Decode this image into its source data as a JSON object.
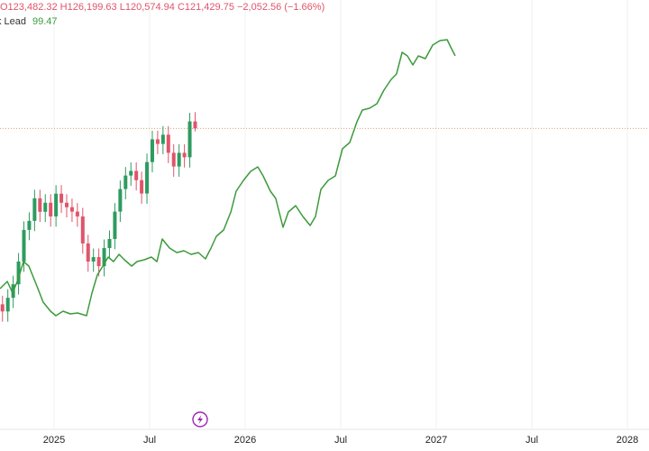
{
  "chart_data": {
    "type": "candlestick",
    "ohlc_text": "O123,482.32 H126,199.63 L120,574.94 C121,429.75 −2,052.56 (−1.66%)",
    "xlim": [
      2024.717,
      2028.113
    ],
    "xticks": [
      {
        "value": 2025,
        "label": "2025"
      },
      {
        "value": 2025.5,
        "label": "Jul"
      },
      {
        "value": 2026,
        "label": "2026"
      },
      {
        "value": 2026.5,
        "label": "Jul"
      },
      {
        "value": 2027,
        "label": "2027"
      },
      {
        "value": 2027.5,
        "label": "Jul"
      },
      {
        "value": 2028,
        "label": "2028"
      }
    ],
    "ylim": [
      35000,
      159000
    ],
    "y2lim": [
      30,
      110
    ],
    "grid": true,
    "up_color": "#2e9b5f",
    "down_color": "#e0546a",
    "price_line_color": "#e0a070",
    "candles": {
      "x": [
        2024.73,
        2024.758,
        2024.786,
        2024.814,
        2024.842,
        2024.87,
        2024.898,
        2024.926,
        2024.954,
        2024.982,
        2025.01,
        2025.038,
        2025.066,
        2025.094,
        2025.122,
        2025.15,
        2025.178,
        2025.206,
        2025.234,
        2025.262,
        2025.29,
        2025.318,
        2025.346,
        2025.374,
        2025.402,
        2025.43,
        2025.458,
        2025.486,
        2025.514,
        2025.542,
        2025.57,
        2025.598,
        2025.626,
        2025.654,
        2025.682,
        2025.71,
        2025.738
      ],
      "open": [
        70000,
        67900,
        71900,
        75850,
        82500,
        91750,
        94400,
        101000,
        97050,
        99700,
        95700,
        102350,
        99700,
        98400,
        97100,
        95700,
        87800,
        82500,
        83800,
        81150,
        86450,
        89100,
        97100,
        103700,
        107650,
        109000,
        106300,
        102400,
        111600,
        118250,
        116900,
        119600,
        114300,
        110300,
        114300,
        113000,
        123482.32
      ],
      "high": [
        72500,
        74400,
        78350,
        85000,
        94250,
        96900,
        103500,
        103500,
        102200,
        102200,
        104850,
        104850,
        102200,
        100900,
        99600,
        98200,
        90300,
        86300,
        86300,
        88950,
        91600,
        99600,
        106200,
        110150,
        111500,
        111500,
        108800,
        114100,
        120750,
        120750,
        122100,
        122100,
        116800,
        116800,
        116800,
        126000,
        126199.63
      ],
      "low": [
        64900,
        64900,
        68900,
        72850,
        79500,
        88750,
        91400,
        94050,
        94050,
        92700,
        92700,
        96700,
        95400,
        94100,
        92700,
        84800,
        79500,
        79500,
        78150,
        78150,
        83450,
        86100,
        94100,
        100700,
        104650,
        103300,
        99400,
        99400,
        108600,
        113900,
        113900,
        111300,
        107300,
        107300,
        110000,
        110000,
        120574.94
      ],
      "close": [
        67900,
        71900,
        75850,
        82500,
        91750,
        94400,
        101000,
        97050,
        99700,
        95700,
        102350,
        99700,
        98400,
        97100,
        95700,
        87800,
        82500,
        83800,
        81150,
        86450,
        89100,
        97100,
        103700,
        107650,
        109000,
        106300,
        102400,
        111600,
        118250,
        116900,
        119600,
        114300,
        110300,
        114300,
        113000,
        123500,
        121429.75
      ]
    },
    "series": [
      {
        "name": "k Lead",
        "color": "#3c9a3c",
        "axis": "y2",
        "x": [
          2024.717,
          2024.755,
          2024.783,
          2024.811,
          2024.84,
          2024.868,
          2024.906,
          2024.943,
          2024.981,
          2025.009,
          2025.047,
          2025.085,
          2025.123,
          2025.17,
          2025.198,
          2025.226,
          2025.255,
          2025.283,
          2025.311,
          2025.34,
          2025.368,
          2025.406,
          2025.434,
          2025.472,
          2025.509,
          2025.538,
          2025.566,
          2025.604,
          2025.642,
          2025.679,
          2025.717,
          2025.755,
          2025.792,
          2025.821,
          2025.849,
          2025.887,
          2025.925,
          2025.953,
          2025.991,
          2026.028,
          2026.066,
          2026.094,
          2026.132,
          2026.16,
          2026.198,
          2026.226,
          2026.264,
          2026.302,
          2026.34,
          2026.368,
          2026.396,
          2026.434,
          2026.472,
          2026.509,
          2026.547,
          2026.585,
          2026.613,
          2026.651,
          2026.689,
          2026.726,
          2026.764,
          2026.792,
          2026.821,
          2026.849,
          2026.877,
          2026.906,
          2026.943,
          2026.981,
          2027.019,
          2027.057,
          2027.075,
          2027.099
        ],
        "values": [
          55.53,
          56.9,
          54.68,
          57.23,
          60.64,
          59.79,
          56.38,
          52.98,
          51.28,
          50.43,
          51.28,
          50.77,
          50.94,
          50.43,
          54.68,
          58.09,
          59.79,
          61.49,
          60.64,
          62.0,
          60.98,
          59.79,
          60.64,
          60.98,
          61.49,
          60.64,
          64.9,
          63.19,
          62.34,
          62.68,
          62.0,
          62.34,
          61.15,
          63.19,
          65.41,
          66.6,
          70.0,
          73.92,
          75.96,
          77.66,
          78.51,
          76.81,
          73.92,
          72.56,
          67.11,
          70.0,
          71.19,
          69.15,
          67.45,
          69.15,
          74.26,
          75.96,
          76.81,
          81.92,
          83.11,
          87.02,
          89.24,
          89.58,
          90.43,
          92.98,
          95.02,
          96.04,
          100.13,
          99.45,
          97.75,
          99.45,
          98.94,
          101.49,
          102.34,
          102.51,
          101.15,
          99.47
        ]
      }
    ]
  }
}
